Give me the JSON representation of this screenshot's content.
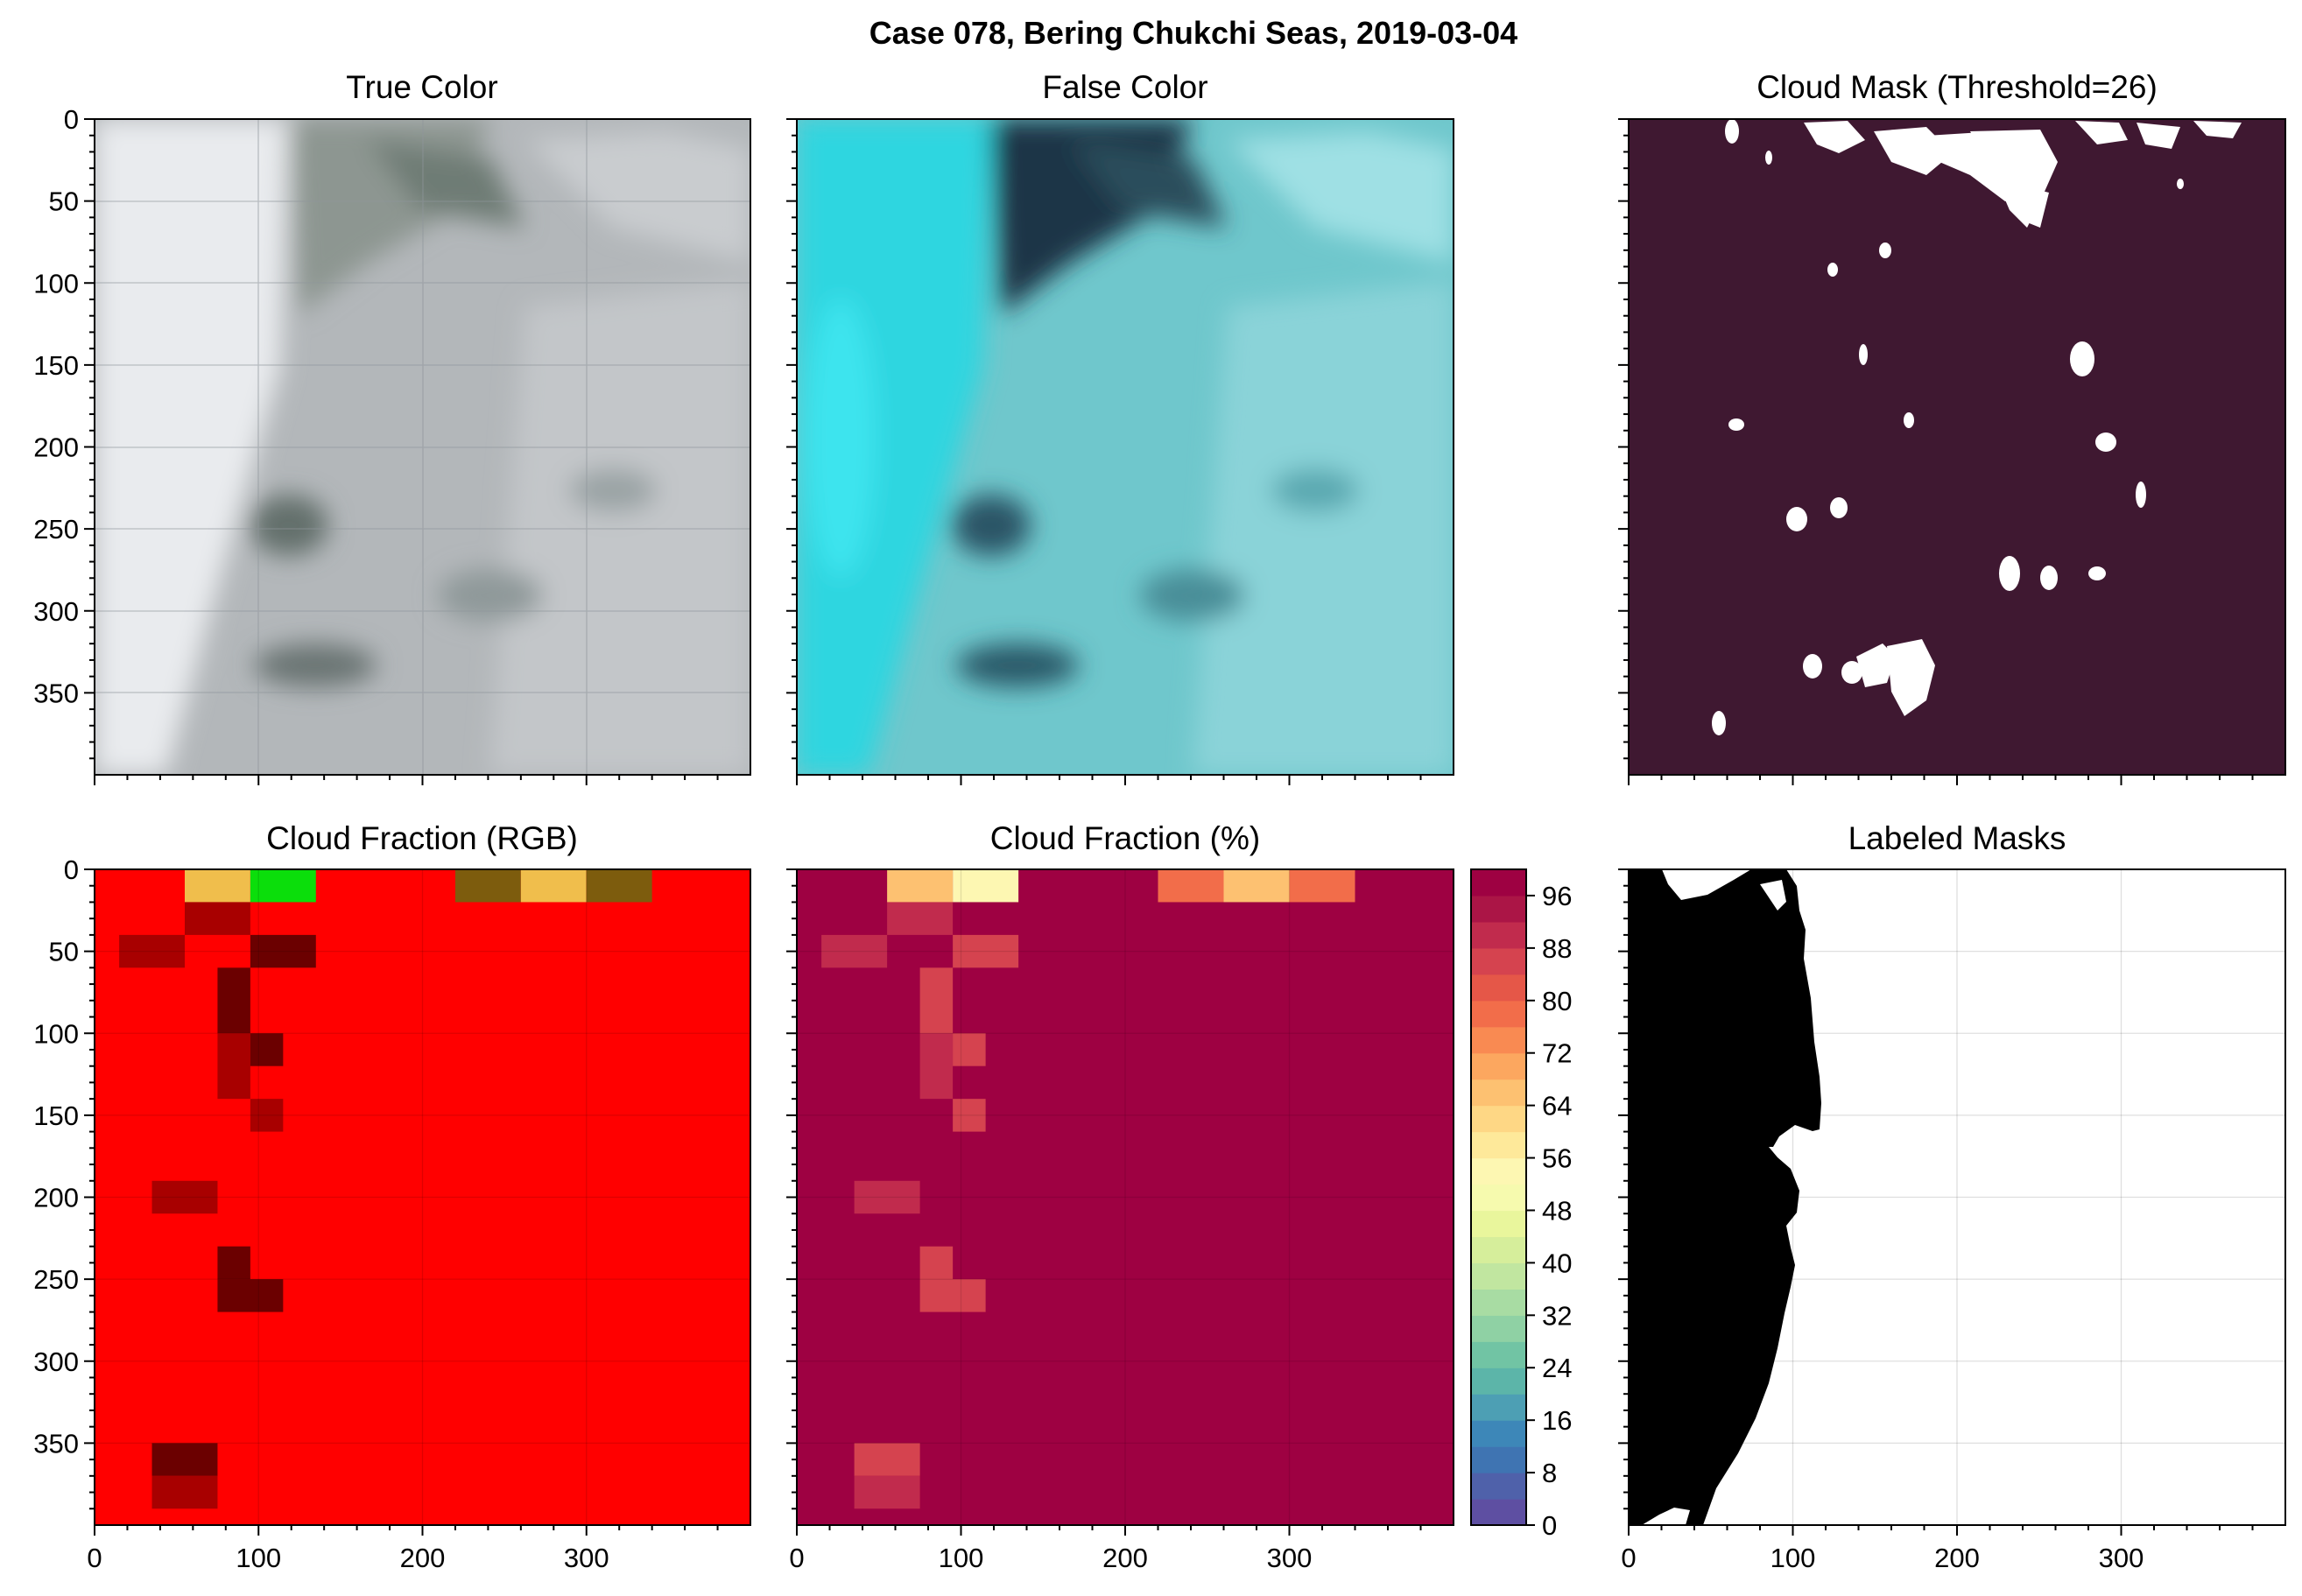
{
  "suptitle": "Case 078, Bering Chukchi Seas, 2019-03-04",
  "chart_data": [
    {
      "type": "image",
      "title": "True Color",
      "xlim": [
        0,
        400
      ],
      "ylim": [
        400,
        0
      ],
      "yticks": [
        "0",
        "50",
        "100",
        "150",
        "200",
        "250",
        "300",
        "350"
      ],
      "xtick_labels_shown": false,
      "grid": true
    },
    {
      "type": "image",
      "title": "False Color",
      "xlim": [
        0,
        400
      ],
      "ylim": [
        400,
        0
      ],
      "xtick_labels_shown": false,
      "grid": true
    },
    {
      "type": "binary-mask",
      "title": "Cloud Mask (Threshold=26)",
      "xlim": [
        0,
        400
      ],
      "ylim": [
        400,
        0
      ],
      "colors": {
        "background": "#3f1831",
        "mask": "#ffffff"
      },
      "grid": false
    },
    {
      "type": "heatmap",
      "title": "Cloud Fraction (RGB)",
      "xlim": [
        0,
        400
      ],
      "ylim": [
        400,
        0
      ],
      "xticks": [
        "0",
        "100",
        "200",
        "300"
      ],
      "yticks": [
        "0",
        "50",
        "100",
        "150",
        "200",
        "250",
        "300",
        "350"
      ],
      "cell_size": 20,
      "default_color": "#ff0000",
      "cells": [
        {
          "x": 55,
          "y": 0,
          "w": 40,
          "h": 20,
          "color": "#f0be4c"
        },
        {
          "x": 95,
          "y": 0,
          "w": 40,
          "h": 20,
          "color": "#0bde0b"
        },
        {
          "x": 220,
          "y": 0,
          "w": 40,
          "h": 20,
          "color": "#7d5c0d"
        },
        {
          "x": 260,
          "y": 0,
          "w": 40,
          "h": 20,
          "color": "#f0be4c"
        },
        {
          "x": 300,
          "y": 0,
          "w": 40,
          "h": 20,
          "color": "#7d5c0d"
        },
        {
          "x": 55,
          "y": 20,
          "w": 40,
          "h": 20,
          "color": "#a80000"
        },
        {
          "x": 15,
          "y": 40,
          "w": 40,
          "h": 20,
          "color": "#a80000"
        },
        {
          "x": 95,
          "y": 40,
          "w": 40,
          "h": 20,
          "color": "#6b0000"
        },
        {
          "x": 75,
          "y": 60,
          "w": 20,
          "h": 40,
          "color": "#6b0000"
        },
        {
          "x": 75,
          "y": 100,
          "w": 20,
          "h": 40,
          "color": "#a80000"
        },
        {
          "x": 95,
          "y": 100,
          "w": 20,
          "h": 20,
          "color": "#6b0000"
        },
        {
          "x": 95,
          "y": 140,
          "w": 20,
          "h": 20,
          "color": "#a80000"
        },
        {
          "x": 35,
          "y": 190,
          "w": 40,
          "h": 20,
          "color": "#a80000"
        },
        {
          "x": 75,
          "y": 230,
          "w": 20,
          "h": 20,
          "color": "#6b0000"
        },
        {
          "x": 75,
          "y": 250,
          "w": 40,
          "h": 20,
          "color": "#6b0000"
        },
        {
          "x": 35,
          "y": 350,
          "w": 40,
          "h": 20,
          "color": "#6b0000"
        },
        {
          "x": 35,
          "y": 370,
          "w": 40,
          "h": 20,
          "color": "#a80000"
        }
      ]
    },
    {
      "type": "heatmap",
      "title": "Cloud Fraction (%)",
      "xlim": [
        0,
        400
      ],
      "ylim": [
        400,
        0
      ],
      "xticks": [
        "0",
        "100",
        "200",
        "300"
      ],
      "default_value": 100,
      "cells": [
        {
          "x": 55,
          "y": 0,
          "w": 40,
          "h": 20,
          "value": 65
        },
        {
          "x": 95,
          "y": 0,
          "w": 40,
          "h": 20,
          "value": 54
        },
        {
          "x": 220,
          "y": 0,
          "w": 40,
          "h": 20,
          "value": 79
        },
        {
          "x": 260,
          "y": 0,
          "w": 40,
          "h": 20,
          "value": 65
        },
        {
          "x": 300,
          "y": 0,
          "w": 40,
          "h": 20,
          "value": 79
        },
        {
          "x": 55,
          "y": 20,
          "w": 40,
          "h": 20,
          "value": 90
        },
        {
          "x": 15,
          "y": 40,
          "w": 40,
          "h": 20,
          "value": 90
        },
        {
          "x": 95,
          "y": 40,
          "w": 40,
          "h": 20,
          "value": 86
        },
        {
          "x": 75,
          "y": 60,
          "w": 20,
          "h": 40,
          "value": 86
        },
        {
          "x": 75,
          "y": 100,
          "w": 20,
          "h": 40,
          "value": 90
        },
        {
          "x": 95,
          "y": 100,
          "w": 20,
          "h": 20,
          "value": 86
        },
        {
          "x": 95,
          "y": 140,
          "w": 20,
          "h": 20,
          "value": 86
        },
        {
          "x": 35,
          "y": 190,
          "w": 40,
          "h": 20,
          "value": 90
        },
        {
          "x": 75,
          "y": 230,
          "w": 20,
          "h": 20,
          "value": 86
        },
        {
          "x": 75,
          "y": 250,
          "w": 40,
          "h": 20,
          "value": 86
        },
        {
          "x": 35,
          "y": 350,
          "w": 40,
          "h": 20,
          "value": 86
        },
        {
          "x": 35,
          "y": 370,
          "w": 40,
          "h": 20,
          "value": 90
        }
      ],
      "colorbar": {
        "ticks": [
          "0",
          "8",
          "16",
          "24",
          "32",
          "40",
          "48",
          "56",
          "64",
          "72",
          "80",
          "88",
          "96"
        ],
        "range": [
          0,
          100
        ],
        "bin_width": 4,
        "colors": [
          "#5e4fa2",
          "#4f61aa",
          "#3f74b2",
          "#3d87b8",
          "#4d9fb4",
          "#5cb5a9",
          "#71c4a4",
          "#8fd1a4",
          "#a8dca3",
          "#c1e6a0",
          "#d6ee9b",
          "#e9f69c",
          "#f6faae",
          "#fdf7b2",
          "#fee99a",
          "#fed785",
          "#fdc171",
          "#fca75f",
          "#f98a52",
          "#f26d4a",
          "#e55748",
          "#d5434f",
          "#c12b4d",
          "#ab1546",
          "#9e0142"
        ]
      }
    },
    {
      "type": "binary-mask",
      "title": "Labeled Masks",
      "xlim": [
        0,
        400
      ],
      "ylim": [
        400,
        0
      ],
      "xticks": [
        "0",
        "100",
        "200",
        "300"
      ],
      "colors": {
        "background": "#ffffff",
        "mask": "#000000"
      },
      "grid": true
    }
  ]
}
